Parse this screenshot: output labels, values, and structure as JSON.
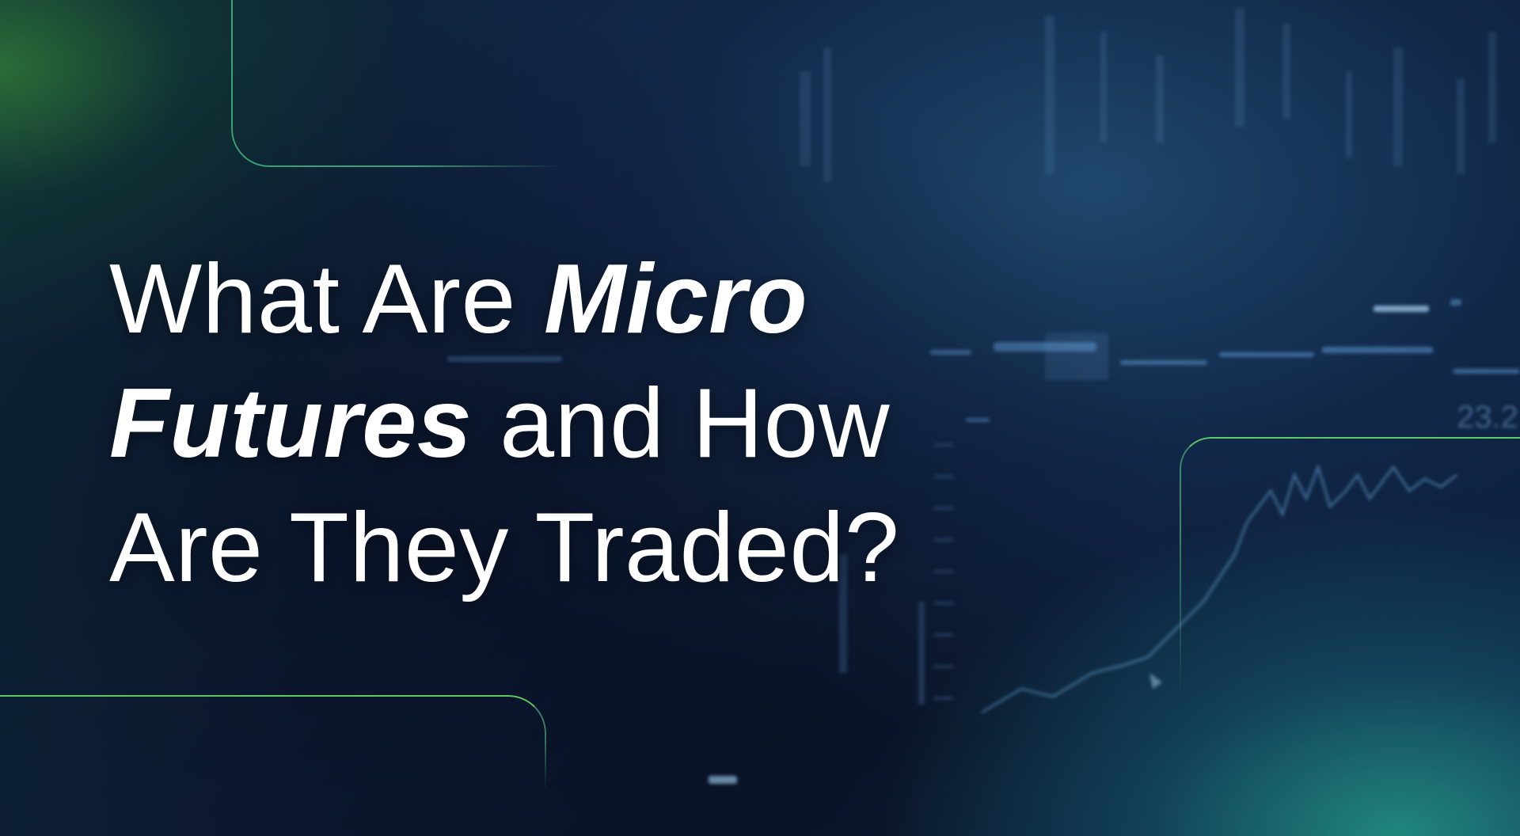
{
  "headline": {
    "line1_regular": "What Are ",
    "line1_emphasis": "Micro",
    "line2_emphasis": "Futures",
    "line2_regular": " and How",
    "line3_regular": "Are They Traded?"
  },
  "background": {
    "chart_readout": "23.2"
  },
  "colors": {
    "accent_green": "#6ee66e",
    "text": "#ffffff",
    "background": "#0a1326"
  }
}
